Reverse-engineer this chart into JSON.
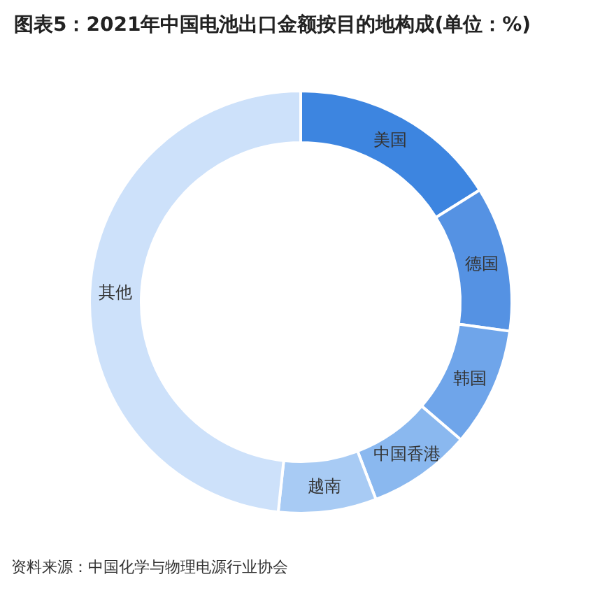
{
  "chart_data": {
    "type": "donut",
    "title": "图表5：2021年中国电池出口金额按目的地构成(单位：%)",
    "categories": [
      "美国",
      "德国",
      "韩国",
      "中国香港",
      "越南",
      "其他"
    ],
    "values": [
      16.1,
      11.1,
      9.1,
      7.9,
      7.5,
      48.3
    ],
    "colors": [
      "#3d85e0",
      "#5592e3",
      "#6fa5ea",
      "#8ab8ef",
      "#a8cbf4",
      "#cde1fa"
    ],
    "annotations": [
      "资料来源：中国化学与物理电源行业协会"
    ]
  }
}
